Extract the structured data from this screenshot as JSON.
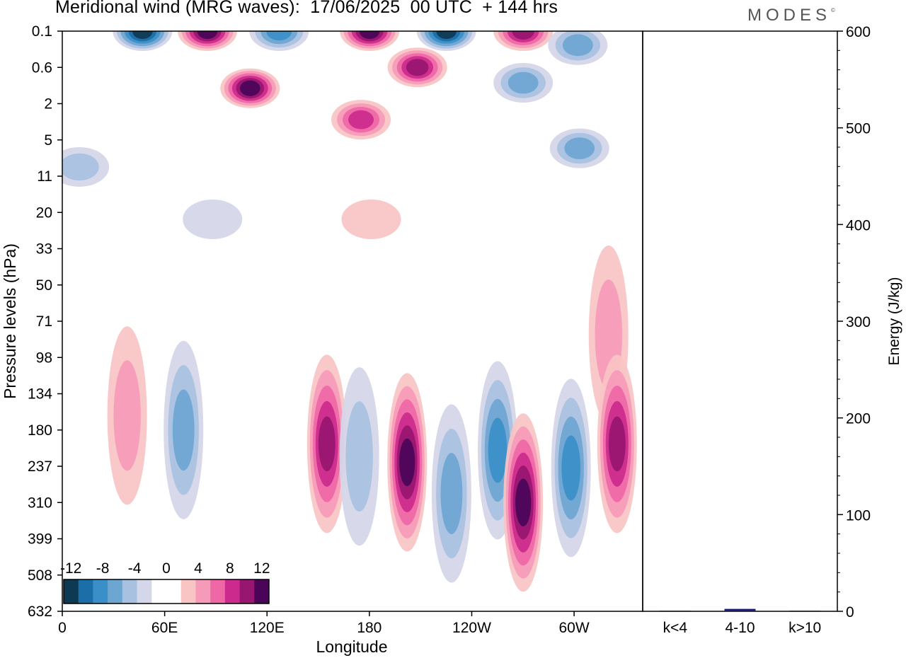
{
  "header": {
    "title": "Meridional wind (MRG waves):  17/06/2025  00 UTC  + 144 hrs",
    "brand": "MODES",
    "brand_mark": "©"
  },
  "colors": {
    "neg": [
      "#0d3a52",
      "#1b6ea8",
      "#3b8fc8",
      "#6ea6d2",
      "#a8c1e0",
      "#d4d6e9"
    ],
    "zero": "#ffffff",
    "pos": [
      "#f8c4c4",
      "#f69aba",
      "#ee68a6",
      "#cc2a8c",
      "#97166f",
      "#4a0558"
    ],
    "bar": "#1a1a7a"
  },
  "chart_data": [
    {
      "type": "heatmap",
      "title": "Meridional wind (MRG waves):  17/06/2025  00 UTC  + 144 hrs",
      "xlabel": "Longitude",
      "ylabel": "Pressure levels (hPa)",
      "x_ticks": [
        "0",
        "60E",
        "120E",
        "180",
        "120W",
        "60W"
      ],
      "y_ticks": [
        "0.1",
        "0.6",
        "2",
        "5",
        "11",
        "20",
        "33",
        "50",
        "71",
        "98",
        "134",
        "180",
        "237",
        "310",
        "399",
        "508",
        "632"
      ],
      "xlim": [
        0,
        340
      ],
      "colorbar": {
        "labels": [
          "-12",
          "-8",
          "-4",
          "0",
          "4",
          "8",
          "12"
        ],
        "levels": [
          -12,
          -10,
          -8,
          -6,
          -4,
          -2,
          2,
          4,
          6,
          8,
          10,
          12
        ]
      },
      "cells": [
        {
          "lon": 47,
          "level": 0.1,
          "value": -12
        },
        {
          "lon": 85,
          "level": 0.1,
          "value": 12
        },
        {
          "lon": 127,
          "level": 0.1,
          "value": -8
        },
        {
          "lon": 180,
          "level": 0.1,
          "value": 12
        },
        {
          "lon": 225,
          "level": 0.1,
          "value": -12
        },
        {
          "lon": 270,
          "level": 0.1,
          "value": 10
        },
        {
          "lon": 302,
          "level": 0.2,
          "value": -6
        },
        {
          "lon": 208,
          "level": 0.6,
          "value": 10
        },
        {
          "lon": 110,
          "level": 1.2,
          "value": 12
        },
        {
          "lon": 270,
          "level": 1.0,
          "value": -6
        },
        {
          "lon": 175,
          "level": 3.0,
          "value": 8
        },
        {
          "lon": 303,
          "level": 6.0,
          "value": -6
        },
        {
          "lon": 10,
          "level": 9.0,
          "value": -4
        },
        {
          "lon": 181,
          "level": 22.0,
          "value": 2
        },
        {
          "lon": 88,
          "level": 22.0,
          "value": -2
        },
        {
          "lon": 320,
          "level": 80.0,
          "value": 4
        },
        {
          "lon": 38,
          "level": 160.0,
          "value": 4
        },
        {
          "lon": 71,
          "level": 180.0,
          "value": -6
        },
        {
          "lon": 155,
          "level": 200.0,
          "value": 10
        },
        {
          "lon": 174,
          "level": 220.0,
          "value": -4
        },
        {
          "lon": 202,
          "level": 230.0,
          "value": 12
        },
        {
          "lon": 228,
          "level": 290.0,
          "value": -6
        },
        {
          "lon": 255,
          "level": 210.0,
          "value": -8
        },
        {
          "lon": 270,
          "level": 310.0,
          "value": 12
        },
        {
          "lon": 298,
          "level": 240.0,
          "value": -8
        },
        {
          "lon": 325,
          "level": 200.0,
          "value": 10
        }
      ]
    },
    {
      "type": "bar",
      "categories": [
        "k<4",
        "4-10",
        "k>10"
      ],
      "values": [
        0.5,
        2.5,
        0.3
      ],
      "ylabel": "Energy (J/kg)",
      "ylim": [
        0,
        600
      ],
      "y_ticks": [
        "0",
        "100",
        "200",
        "300",
        "400",
        "500",
        "600"
      ]
    }
  ]
}
